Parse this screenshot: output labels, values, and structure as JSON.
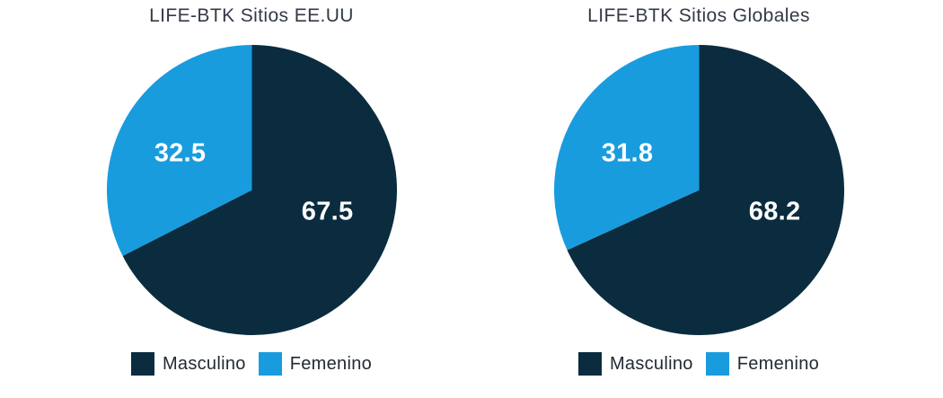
{
  "chart_data": [
    {
      "type": "pie",
      "title": "LIFE-BTK Sitios EE.UU",
      "categories": [
        "Masculino",
        "Femenino"
      ],
      "values": [
        67.5,
        32.5
      ],
      "colors": [
        "#0a2c3e",
        "#199cde"
      ],
      "data_labels": [
        "67.5",
        "32.5"
      ],
      "data_label_color": "#ffffff",
      "start_angle_deg": 0,
      "direction": "clockwise",
      "legend_position": "bottom"
    },
    {
      "type": "pie",
      "title": "LIFE-BTK Sitios Globales",
      "categories": [
        "Masculino",
        "Femenino"
      ],
      "values": [
        68.2,
        31.8
      ],
      "colors": [
        "#0a2c3e",
        "#199cde"
      ],
      "data_labels": [
        "68.2",
        "31.8"
      ],
      "data_label_color": "#ffffff",
      "start_angle_deg": 0,
      "direction": "clockwise",
      "legend_position": "bottom"
    }
  ],
  "legend": {
    "items": [
      {
        "label": "Masculino",
        "color": "#0a2c3e"
      },
      {
        "label": "Femenino",
        "color": "#199cde"
      }
    ]
  }
}
